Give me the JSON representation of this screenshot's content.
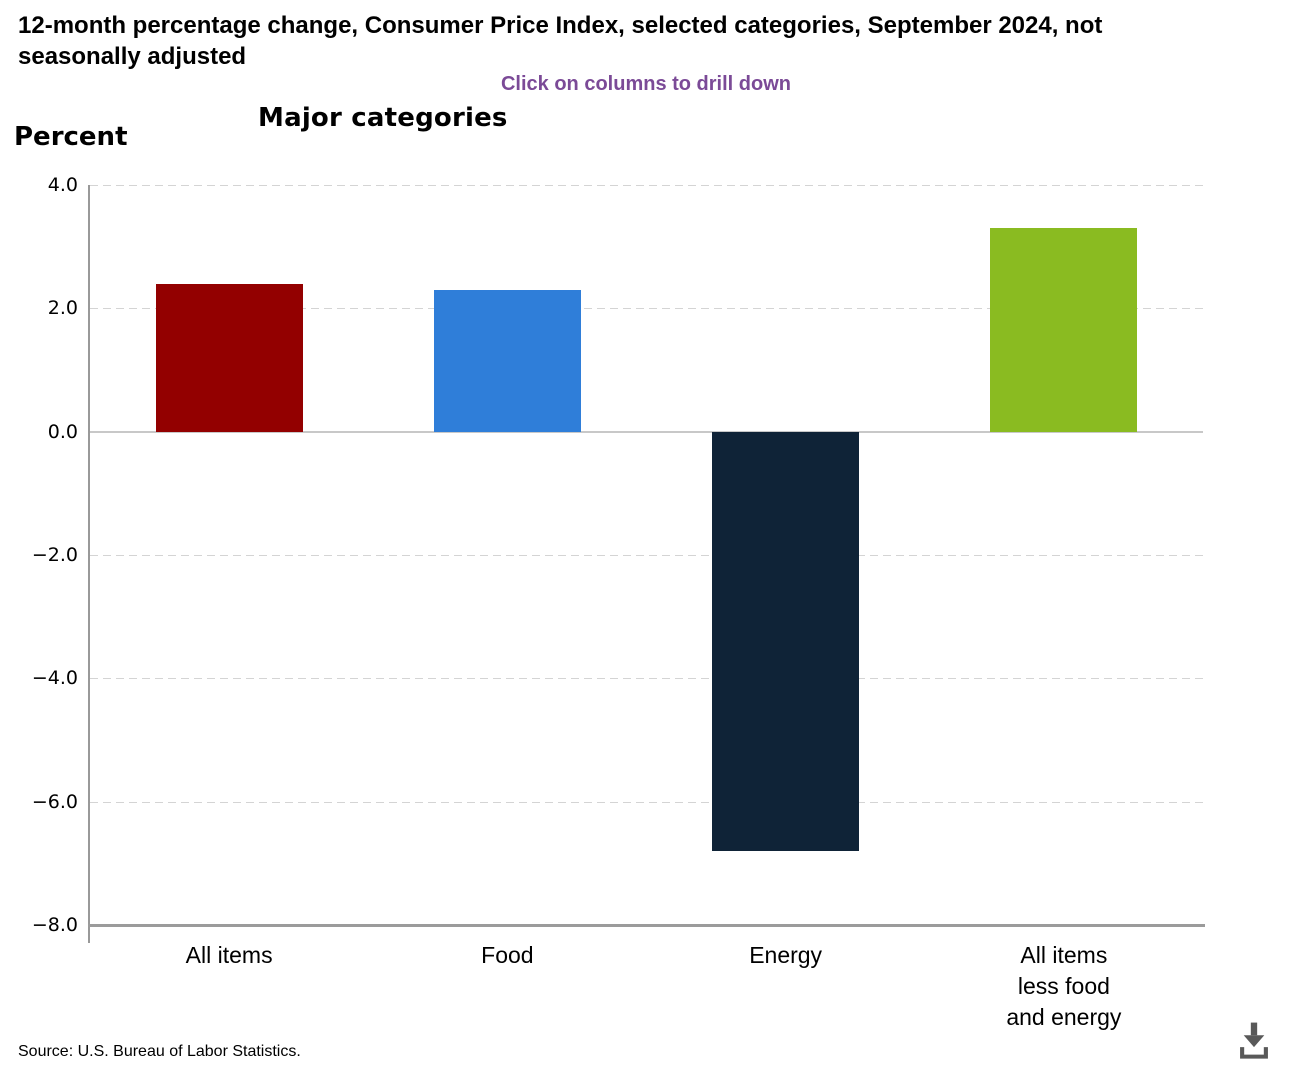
{
  "header": {
    "title": "12-month percentage change, Consumer Price Index, selected categories, September 2024, not seasonally adjusted",
    "subtitle": "Click on columns to drill down",
    "chart_heading": "Major categories",
    "axis_unit_label": "Percent"
  },
  "chart_data": {
    "type": "bar",
    "title": "Major categories",
    "categories": [
      "All items",
      "Food",
      "Energy",
      "All items\nless food\nand energy"
    ],
    "values": [
      2.4,
      2.3,
      -6.8,
      3.3
    ],
    "bar_colors": [
      "#930000",
      "#2f7ed9",
      "#0f2337",
      "#8abb21"
    ],
    "xlabel": "",
    "ylabel": "Percent",
    "ylim": [
      -8.0,
      4.0
    ],
    "ytick_interval": 2.0,
    "yticks": [
      {
        "label": "4.0",
        "value": 4
      },
      {
        "label": "2.0",
        "value": 2
      },
      {
        "label": "0.0",
        "value": 0
      },
      {
        "label": "−2.0",
        "value": -2
      },
      {
        "label": "−4.0",
        "value": -4
      },
      {
        "label": "−6.0",
        "value": -6
      },
      {
        "label": "−8.0",
        "value": -8
      }
    ],
    "grid": "horizontal dashed, solid zero line",
    "legend": "none",
    "bars_clickable_hint": "Click on columns to drill down"
  },
  "footer": {
    "source": "Source: U.S. Bureau of Labor Statistics.",
    "download_icon": "download-icon"
  },
  "colors": {
    "subtitle_text": "#7b4a97",
    "axis_line": "#999999",
    "gridline": "#d4d4d4",
    "zero_line": "#c8c8c8",
    "title_text": "#000000",
    "download_icon": "#595959"
  }
}
